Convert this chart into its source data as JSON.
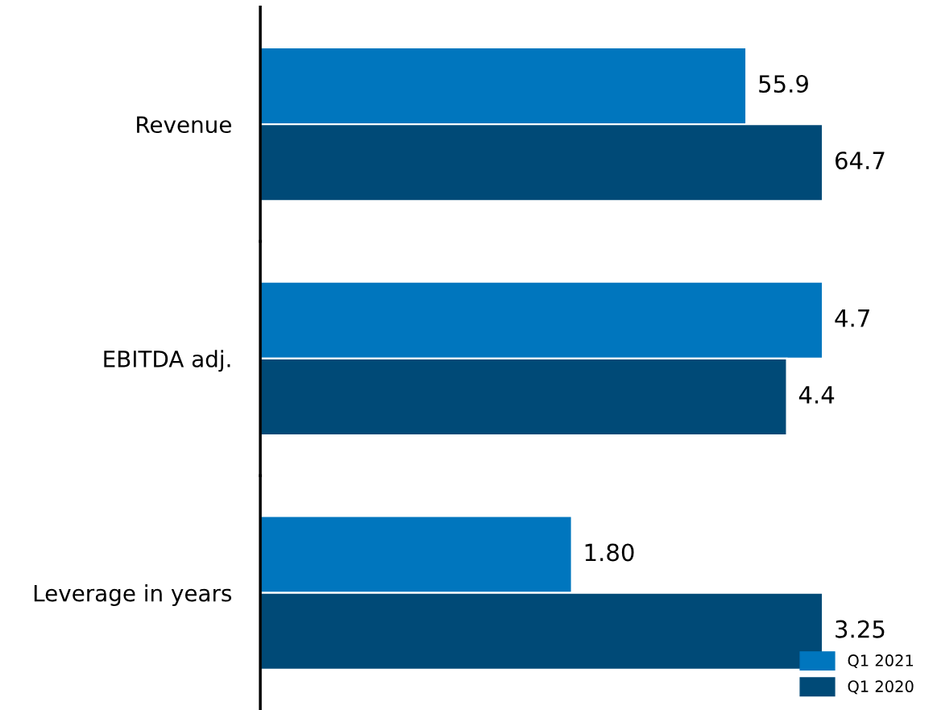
{
  "chart_data": [
    {
      "type": "bar",
      "orientation": "horizontal",
      "categories": [
        "Revenue"
      ],
      "series": [
        {
          "color": "#0076be",
          "values": [
            55.9
          ],
          "value_labels": [
            "55.9"
          ]
        },
        {
          "color": "#004a77",
          "values": [
            64.7
          ],
          "value_labels": [
            "64.7"
          ]
        }
      ],
      "tick_labels": "y",
      "grid": false
    },
    {
      "type": "bar",
      "orientation": "horizontal",
      "categories": [
        "EBITDA adj."
      ],
      "series": [
        {
          "color": "#0076be",
          "values": [
            4.7
          ],
          "value_labels": [
            "4.7"
          ]
        },
        {
          "color": "#004a77",
          "values": [
            4.4
          ],
          "value_labels": [
            "4.4"
          ]
        }
      ],
      "tick_labels": "y",
      "grid": false
    },
    {
      "type": "bar",
      "orientation": "horizontal",
      "categories": [
        "Leverage in years"
      ],
      "series": [
        {
          "name": "Q1 2021",
          "color": "#0076be",
          "values": [
            1.8
          ],
          "value_labels": [
            "1.80"
          ]
        },
        {
          "name": "Q1 2020",
          "color": "#004a77",
          "values": [
            3.25
          ],
          "value_labels": [
            "3.25"
          ]
        }
      ],
      "tick_labels": "y",
      "grid": false,
      "legend": "bottom right"
    }
  ]
}
